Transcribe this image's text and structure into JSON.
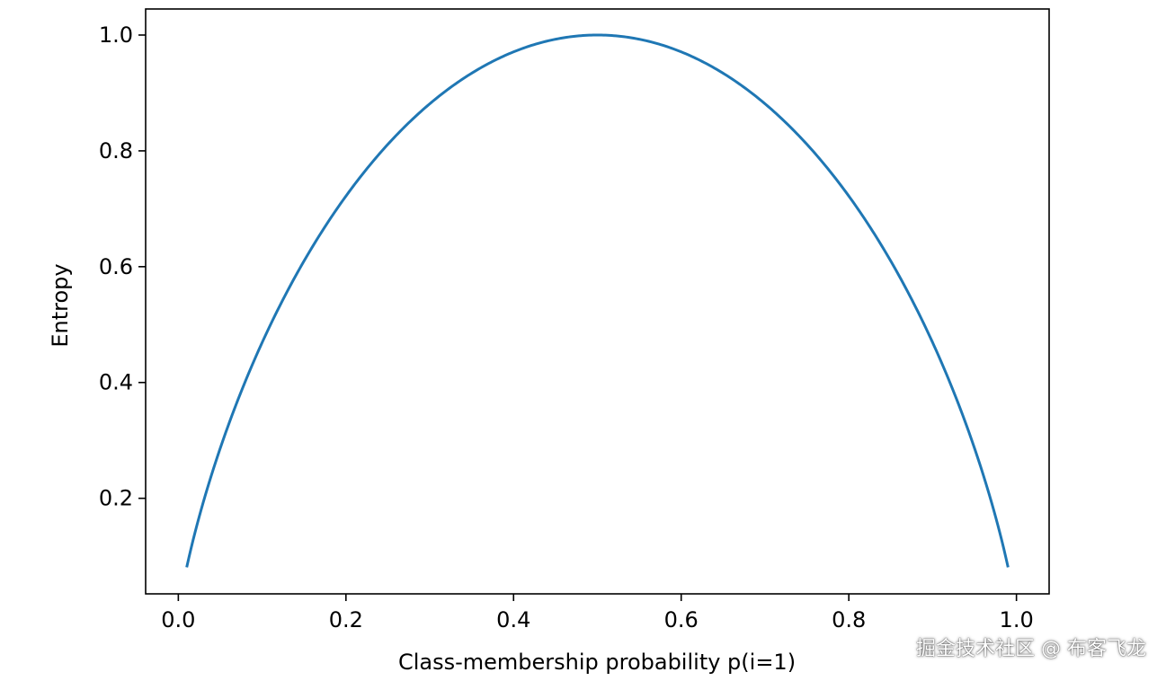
{
  "chart_data": {
    "type": "line",
    "title": "",
    "xlabel": "Class-membership probability p(i=1)",
    "ylabel": "Entropy",
    "xlim": [
      -0.039,
      1.039
    ],
    "ylim": [
      0.035,
      1.045
    ],
    "xticks": [
      0.0,
      0.2,
      0.4,
      0.6,
      0.8,
      1.0
    ],
    "xtick_labels": [
      "0.0",
      "0.2",
      "0.4",
      "0.6",
      "0.8",
      "1.0"
    ],
    "yticks": [
      0.2,
      0.4,
      0.6,
      0.8,
      1.0
    ],
    "ytick_labels": [
      "0.2",
      "0.4",
      "0.6",
      "0.8",
      "1.0"
    ],
    "grid": false,
    "legend": false,
    "series": [
      {
        "color": "#1f77b4",
        "x": [
          0.01,
          0.05,
          0.1,
          0.15,
          0.2,
          0.25,
          0.3,
          0.35,
          0.4,
          0.45,
          0.5,
          0.55,
          0.6,
          0.65,
          0.7,
          0.75,
          0.8,
          0.85,
          0.9,
          0.95,
          0.99
        ],
        "y": [
          0.081,
          0.286,
          0.469,
          0.61,
          0.722,
          0.811,
          0.881,
          0.934,
          0.971,
          0.993,
          1.0,
          0.993,
          0.971,
          0.934,
          0.881,
          0.811,
          0.722,
          0.61,
          0.469,
          0.286,
          0.081
        ]
      }
    ]
  },
  "watermark": "掘金技术社区 @ 布客飞龙"
}
